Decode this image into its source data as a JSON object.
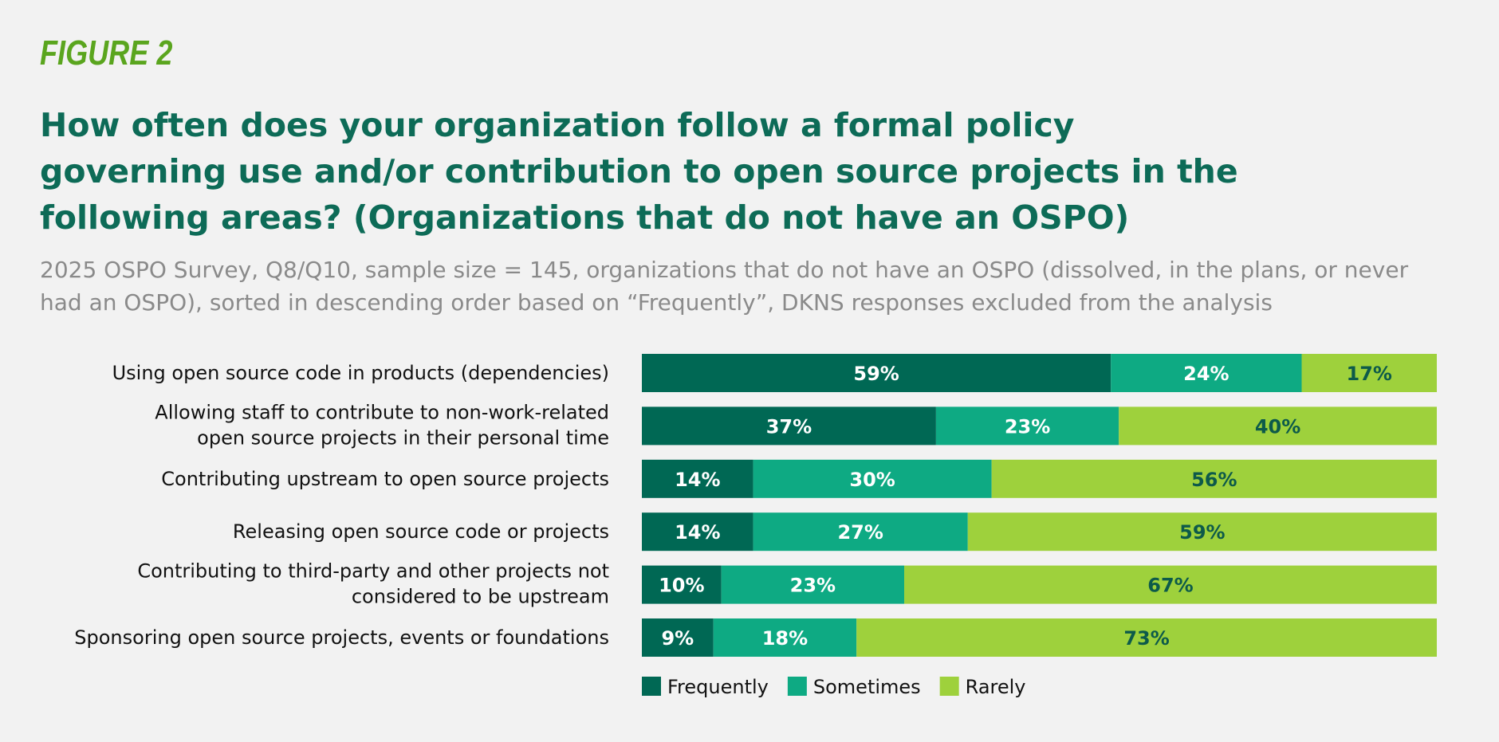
{
  "figure_label": "FIGURE 2",
  "title": "How often does your organization follow a formal policy governing use and/or contribution to open source projects in the following areas? (Organizations that do not have an OSPO)",
  "subtitle": "2025 OSPO Survey, Q8/Q10, sample size = 145, organizations that do not have an OSPO (dissolved, in the plans, or never had an OSPO), sorted in descending order based on “Frequently”, DKNS responses excluded from the analysis",
  "chart_data": {
    "type": "bar",
    "orientation": "horizontal",
    "stacked": true,
    "categories": [
      [
        "Using open source code in products (dependencies)"
      ],
      [
        "Allowing staff to contribute to non-work-related",
        "open source projects in their personal time"
      ],
      [
        "Contributing upstream to open source projects"
      ],
      [
        "Releasing open source code or projects"
      ],
      [
        "Contributing to third-party and other projects not",
        "considered to be upstream"
      ],
      [
        "Sponsoring open source projects, events or foundations"
      ]
    ],
    "series": [
      {
        "name": "Frequently",
        "color": "#006854",
        "label_color": "#ffffff",
        "values": [
          59,
          37,
          14,
          14,
          10,
          9
        ]
      },
      {
        "name": "Sometimes",
        "color": "#0eaa83",
        "label_color": "#ffffff",
        "values": [
          24,
          23,
          30,
          27,
          23,
          18
        ]
      },
      {
        "name": "Rarely",
        "color": "#9ed13c",
        "label_color": "#0d5a4a",
        "values": [
          17,
          40,
          56,
          59,
          67,
          73
        ]
      }
    ],
    "value_suffix": "%",
    "xlim": [
      0,
      100
    ],
    "grid": false,
    "legend_position": "bottom"
  }
}
